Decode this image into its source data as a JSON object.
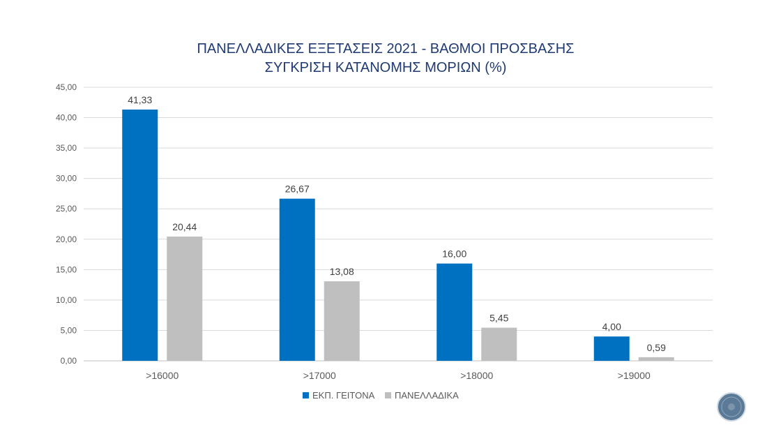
{
  "chart_data": {
    "type": "bar",
    "title": [
      "ΠΑΝΕΛΛΑΔΙΚΕΣ ΕΞΕΤΑΣΕΙΣ 2021 - ΒΑΘΜΟΙ ΠΡΟΣΒΑΣΗΣ",
      "ΣΥΓΚΡΙΣΗ ΚΑΤΑΝΟΜΗΣ ΜΟΡΙΩΝ (%)"
    ],
    "categories": [
      ">16000",
      ">17000",
      ">18000",
      ">19000"
    ],
    "series": [
      {
        "name": "ΕΚΠ. ΓΕΙΤΟΝΑ",
        "color": "#0070c0",
        "values": [
          41.33,
          26.67,
          16.0,
          4.0
        ],
        "labels": [
          "41,33",
          "26,67",
          "16,00",
          "4,00"
        ]
      },
      {
        "name": "ΠΑΝΕΛΛΑΔΙΚΑ",
        "color": "#bfbfbf",
        "values": [
          20.44,
          13.08,
          5.45,
          0.59
        ],
        "labels": [
          "20,44",
          "13,08",
          "5,45",
          "0,59"
        ]
      }
    ],
    "ylim": [
      0,
      45
    ],
    "yticks": [
      "0,00",
      "5,00",
      "10,00",
      "15,00",
      "20,00",
      "25,00",
      "30,00",
      "35,00",
      "40,00",
      "45,00"
    ],
    "ytick_values": [
      0,
      5,
      10,
      15,
      20,
      25,
      30,
      35,
      40,
      45
    ],
    "grid": true,
    "legend_position": "bottom"
  },
  "decor": {
    "logo_icon": "circular-seal-logo"
  }
}
